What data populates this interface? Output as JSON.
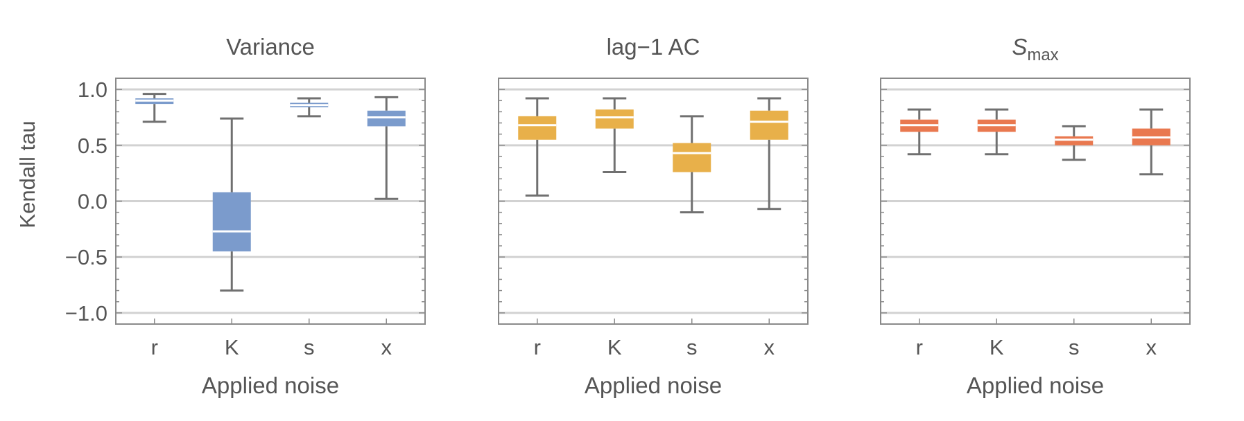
{
  "figure": {
    "ylabel": "Kendall tau"
  },
  "chart_data": [
    {
      "type": "box",
      "title": "Variance",
      "title_sub": "",
      "xlabel": "Applied noise",
      "ylabel": "Kendall tau",
      "ylim": [
        -1.1,
        1.1
      ],
      "yticks": [
        1.0,
        0.5,
        0.0,
        -0.5,
        -1.0
      ],
      "ytick_labels": [
        "1.0",
        "0.5",
        "0.0",
        "−0.5",
        "−1.0"
      ],
      "grid": true,
      "color": "#7b9bcc",
      "categories": [
        "r",
        "K",
        "s",
        "x"
      ],
      "boxes": [
        {
          "min": 0.71,
          "q1": 0.87,
          "median": 0.9,
          "q3": 0.92,
          "max": 0.96
        },
        {
          "min": -0.8,
          "q1": -0.45,
          "median": -0.27,
          "q3": 0.08,
          "max": 0.74
        },
        {
          "min": 0.76,
          "q1": 0.84,
          "median": 0.86,
          "q3": 0.88,
          "max": 0.92
        },
        {
          "min": 0.02,
          "q1": 0.67,
          "median": 0.75,
          "q3": 0.81,
          "max": 0.93
        }
      ]
    },
    {
      "type": "box",
      "title": "lag−1 AC",
      "title_sub": "",
      "xlabel": "Applied noise",
      "ylabel": "",
      "ylim": [
        -1.1,
        1.1
      ],
      "yticks": [
        1.0,
        0.5,
        0.0,
        -0.5,
        -1.0
      ],
      "ytick_labels": [],
      "grid": true,
      "color": "#e8b04a",
      "categories": [
        "r",
        "K",
        "s",
        "x"
      ],
      "boxes": [
        {
          "min": 0.05,
          "q1": 0.55,
          "median": 0.68,
          "q3": 0.76,
          "max": 0.92
        },
        {
          "min": 0.26,
          "q1": 0.65,
          "median": 0.75,
          "q3": 0.82,
          "max": 0.92
        },
        {
          "min": -0.1,
          "q1": 0.26,
          "median": 0.43,
          "q3": 0.52,
          "max": 0.76
        },
        {
          "min": -0.07,
          "q1": 0.55,
          "median": 0.71,
          "q3": 0.81,
          "max": 0.92
        }
      ]
    },
    {
      "type": "box",
      "title": "S",
      "title_sub": "max",
      "xlabel": "Applied noise",
      "ylabel": "",
      "ylim": [
        -1.1,
        1.1
      ],
      "yticks": [
        1.0,
        0.5,
        0.0,
        -0.5,
        -1.0
      ],
      "ytick_labels": [],
      "grid": true,
      "color": "#e9784f",
      "categories": [
        "r",
        "K",
        "s",
        "x"
      ],
      "boxes": [
        {
          "min": 0.42,
          "q1": 0.62,
          "median": 0.68,
          "q3": 0.73,
          "max": 0.82
        },
        {
          "min": 0.42,
          "q1": 0.62,
          "median": 0.68,
          "q3": 0.73,
          "max": 0.82
        },
        {
          "min": 0.37,
          "q1": 0.5,
          "median": 0.55,
          "q3": 0.58,
          "max": 0.67
        },
        {
          "min": 0.24,
          "q1": 0.5,
          "median": 0.57,
          "q3": 0.65,
          "max": 0.82
        }
      ]
    }
  ]
}
